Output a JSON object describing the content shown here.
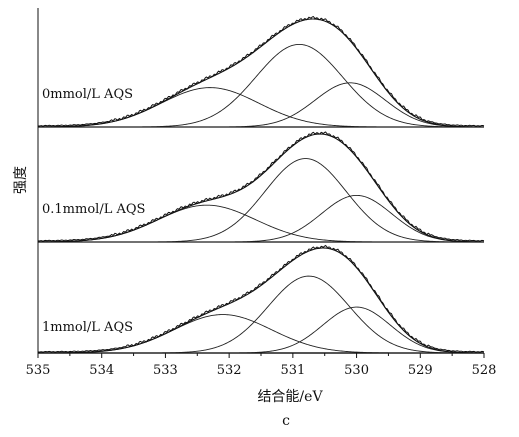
{
  "chart_data": {
    "type": "line",
    "title": "",
    "xlabel": "结合能/eV",
    "ylabel": "强度",
    "caption": "c",
    "xlim": [
      535,
      528
    ],
    "x_reversed": true,
    "x_ticks": [
      "535",
      "534",
      "533",
      "532",
      "531",
      "530",
      "529",
      "528"
    ],
    "grid": false,
    "panels": [
      {
        "label": "0mmol/L AQS",
        "envelope_peak": 1.0,
        "components": [
          {
            "center_eV": 532.3,
            "height": 0.41,
            "fwhm_eV": 1.8
          },
          {
            "center_eV": 530.9,
            "height": 0.86,
            "fwhm_eV": 1.6
          },
          {
            "center_eV": 530.1,
            "height": 0.46,
            "fwhm_eV": 1.3
          }
        ]
      },
      {
        "label": "0.1mmol/L AQS",
        "envelope_peak": 1.0,
        "components": [
          {
            "center_eV": 532.35,
            "height": 0.34,
            "fwhm_eV": 1.8
          },
          {
            "center_eV": 530.8,
            "height": 0.77,
            "fwhm_eV": 1.5
          },
          {
            "center_eV": 530.0,
            "height": 0.43,
            "fwhm_eV": 1.3
          }
        ]
      },
      {
        "label": "1mmol/L AQS",
        "envelope_peak": 1.0,
        "components": [
          {
            "center_eV": 532.1,
            "height": 0.36,
            "fwhm_eV": 1.8
          },
          {
            "center_eV": 530.75,
            "height": 0.72,
            "fwhm_eV": 1.5
          },
          {
            "center_eV": 530.0,
            "height": 0.43,
            "fwhm_eV": 1.25
          }
        ]
      }
    ]
  }
}
